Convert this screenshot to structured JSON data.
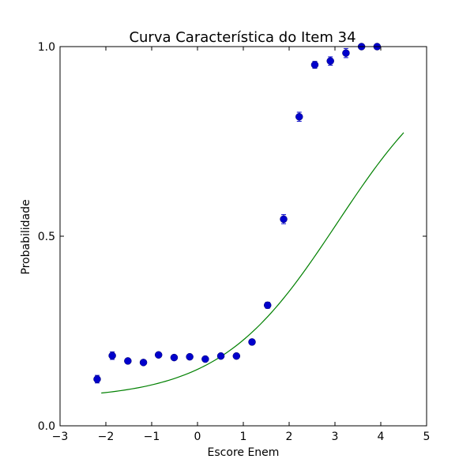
{
  "chart_data": {
    "type": "scatter",
    "title": "Curva Característica do Item 34",
    "xlabel": "Escore Enem",
    "ylabel": "Probabilidade",
    "xlim": [
      -3,
      5
    ],
    "ylim": [
      0,
      1
    ],
    "grid": false,
    "xticks": [
      -3,
      -2,
      -1,
      0,
      1,
      2,
      3,
      4,
      5
    ],
    "xtick_labels": [
      "−3",
      "−2",
      "−1",
      "0",
      "1",
      "2",
      "3",
      "4",
      "5"
    ],
    "yticks": [
      0,
      0.5,
      1
    ],
    "ytick_labels": [
      "0.0",
      "0.5",
      "1.0"
    ],
    "colors": {
      "points": "#0000cc",
      "curve": "#008000"
    },
    "series": [
      {
        "kind": "points-with-errorbars",
        "x": [
          -2.19,
          -1.86,
          -1.52,
          -1.18,
          -0.85,
          -0.51,
          -0.17,
          0.17,
          0.51,
          0.85,
          1.19,
          1.53,
          1.88,
          2.22,
          2.56,
          2.9,
          3.24,
          3.58,
          3.92
        ],
        "y": [
          0.123,
          0.185,
          0.171,
          0.167,
          0.187,
          0.18,
          0.182,
          0.176,
          0.184,
          0.184,
          0.221,
          0.318,
          0.545,
          0.815,
          0.952,
          0.962,
          0.983,
          1.0,
          1.0
        ],
        "err": [
          0.01,
          0.01,
          0.006,
          0.005,
          0.006,
          0.005,
          0.005,
          0.005,
          0.005,
          0.006,
          0.007,
          0.008,
          0.012,
          0.012,
          0.009,
          0.011,
          0.012,
          0.004,
          0.004
        ]
      },
      {
        "kind": "logistic-curve",
        "model": "3PL",
        "a": 0.78,
        "b": 3.05,
        "c": 0.07,
        "x_range": [
          -2.1,
          4.5
        ]
      }
    ]
  }
}
